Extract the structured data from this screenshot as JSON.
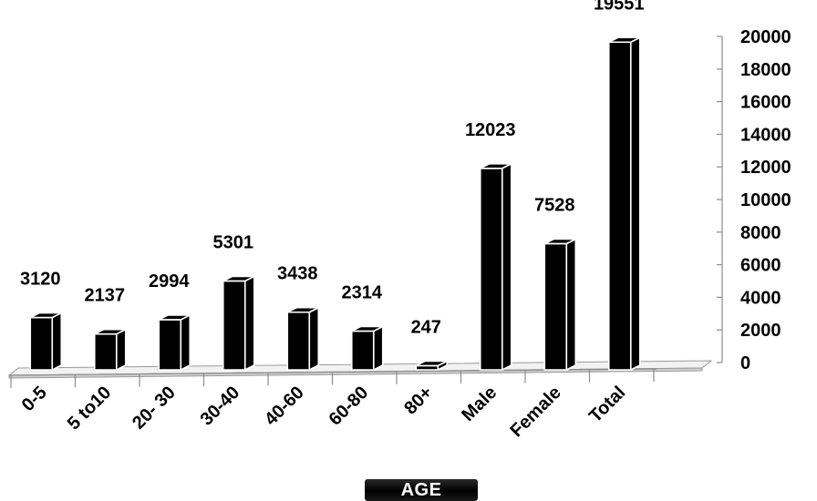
{
  "chart_data": {
    "type": "bar",
    "title": "",
    "xlabel": "AGE",
    "ylabel": "",
    "categories": [
      "0-5",
      "5 to10",
      "20- 30",
      "30-40",
      "40-60",
      "60-80",
      "80+",
      "Male",
      "Female",
      "Total"
    ],
    "values": [
      3120,
      2137,
      2994,
      5301,
      3438,
      2314,
      247,
      12023,
      7528,
      19551
    ],
    "data_labels": [
      "3120",
      "2137",
      "2994",
      "5301",
      "3438",
      "2314",
      "247",
      "12023",
      "7528",
      "19551"
    ],
    "ylim": [
      0,
      20000
    ],
    "yticks": [
      "0",
      "2000",
      "4000",
      "6000",
      "8000",
      "10000",
      "12000",
      "14000",
      "16000",
      "18000",
      "20000"
    ],
    "grid": false,
    "legend": "none",
    "style": "3d-column",
    "bar_color": "#000000"
  }
}
